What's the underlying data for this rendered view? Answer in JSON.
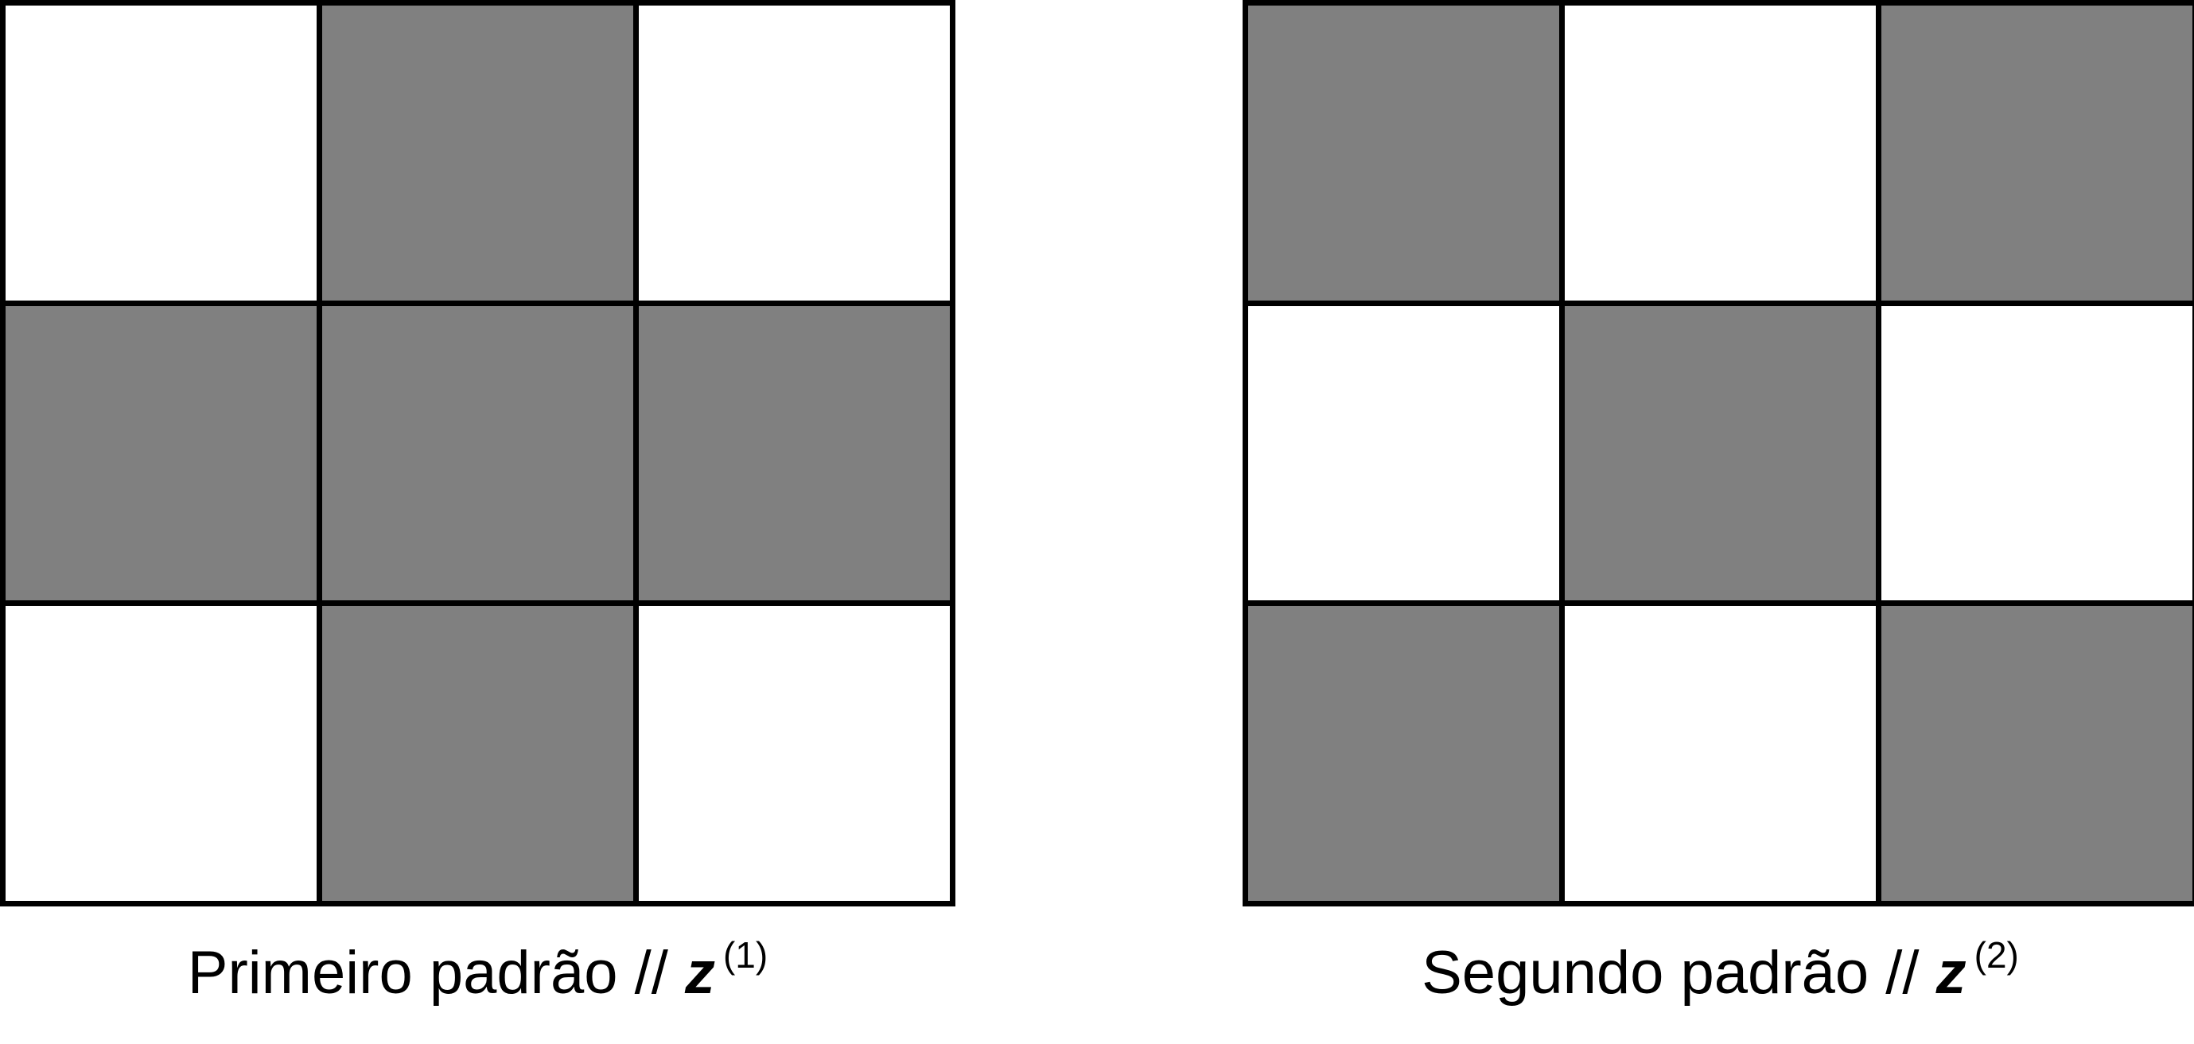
{
  "colors": {
    "on": "#808080",
    "off": "#ffffff",
    "border": "#000000"
  },
  "patterns": [
    {
      "caption_text": "Primeiro padrão //",
      "variable": "z",
      "superscript": "(1)",
      "cells": [
        [
          0,
          1,
          0
        ],
        [
          1,
          1,
          1
        ],
        [
          0,
          1,
          0
        ]
      ]
    },
    {
      "caption_text": "Segundo padrão //",
      "variable": "z",
      "superscript": "(2)",
      "cells": [
        [
          1,
          0,
          1
        ],
        [
          0,
          1,
          0
        ],
        [
          1,
          0,
          1
        ]
      ]
    }
  ]
}
